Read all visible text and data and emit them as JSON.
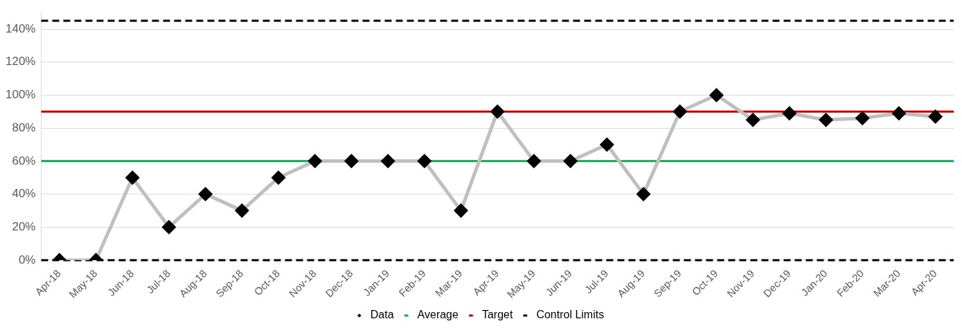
{
  "chart_data": {
    "type": "line",
    "categories": [
      "Apr-18",
      "May-18",
      "Jun-18",
      "Jul-18",
      "Aug-18",
      "Sep-18",
      "Oct-18",
      "Nov-18",
      "Dec-18",
      "Jan-19",
      "Feb-19",
      "Mar-19",
      "Apr-19",
      "May-19",
      "Jun-19",
      "Jul-19",
      "Aug-19",
      "Sep-19",
      "Oct-19",
      "Nov-19",
      "Dec-19",
      "Jan-20",
      "Feb-20",
      "Mar-20",
      "Apr-20"
    ],
    "series": [
      {
        "name": "Data",
        "color": "#bfbfbf",
        "values": [
          0,
          0,
          50,
          20,
          40,
          30,
          50,
          60,
          60,
          60,
          60,
          30,
          90,
          60,
          60,
          70,
          40,
          90,
          100,
          85,
          89,
          85,
          86,
          89,
          87
        ]
      }
    ],
    "ref_lines": [
      {
        "axis": "y",
        "value": 60,
        "label": "Average",
        "color": "#00b050",
        "line_style": "solid"
      },
      {
        "axis": "y",
        "value": 90,
        "label": "Target",
        "color": "#c00000",
        "line_style": "solid"
      },
      {
        "axis": "y",
        "value": 145,
        "label": "Control Limits",
        "color": "#000000",
        "line_style": "dashed"
      },
      {
        "axis": "y",
        "value": 0,
        "color": "#000000",
        "line_style": "dashed"
      }
    ],
    "ylim": [
      0,
      150
    ],
    "yticks": [
      {
        "value": 0,
        "label": "0%"
      },
      {
        "value": 20,
        "label": "20%"
      },
      {
        "value": 40,
        "label": "40%"
      },
      {
        "value": 60,
        "label": "60%"
      },
      {
        "value": 80,
        "label": "80%"
      },
      {
        "value": 100,
        "label": "100%"
      },
      {
        "value": 120,
        "label": "120%"
      },
      {
        "value": 140,
        "label": "140%"
      }
    ],
    "grid": "y",
    "legend": "bottom",
    "marker": "diamond",
    "line_style": "solid"
  }
}
